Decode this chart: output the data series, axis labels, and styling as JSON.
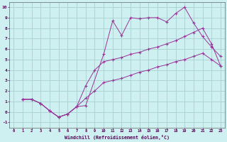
{
  "bg_color": "#cef0f0",
  "grid_color": "#a8d0d0",
  "line_color": "#993399",
  "xlim": [
    -0.5,
    23.5
  ],
  "ylim": [
    -1.5,
    10.5
  ],
  "xticks": [
    0,
    1,
    2,
    3,
    4,
    5,
    6,
    7,
    8,
    9,
    10,
    11,
    12,
    13,
    14,
    15,
    16,
    17,
    18,
    19,
    20,
    21,
    22,
    23
  ],
  "yticks": [
    -1,
    0,
    1,
    2,
    3,
    4,
    5,
    6,
    7,
    8,
    9,
    10
  ],
  "xlabel": "Windchill (Refroidissement éolien,°C)",
  "line1_x": [
    1,
    2,
    3,
    4,
    5,
    6,
    7,
    8,
    10,
    11,
    12,
    13,
    14,
    15,
    16,
    17,
    18,
    19,
    20,
    21,
    22,
    23
  ],
  "line1_y": [
    1.2,
    1.2,
    0.8,
    0.1,
    -0.5,
    -0.2,
    0.5,
    0.6,
    5.5,
    8.7,
    7.3,
    9.0,
    8.9,
    9.0,
    9.0,
    8.6,
    9.4,
    10.0,
    8.5,
    7.2,
    6.2,
    5.3
  ],
  "line2_x": [
    1,
    2,
    3,
    4,
    5,
    6,
    7,
    8,
    9,
    10,
    11,
    12,
    13,
    14,
    15,
    16,
    17,
    18,
    19,
    20,
    21,
    22,
    23
  ],
  "line2_y": [
    1.2,
    1.2,
    0.8,
    0.1,
    -0.5,
    -0.2,
    0.5,
    2.5,
    4.0,
    4.8,
    5.0,
    5.2,
    5.5,
    5.7,
    6.0,
    6.2,
    6.5,
    6.8,
    7.2,
    7.6,
    8.0,
    6.5,
    4.4
  ],
  "line3_x": [
    1,
    2,
    3,
    4,
    5,
    6,
    7,
    8,
    9,
    10,
    11,
    12,
    13,
    14,
    15,
    16,
    17,
    18,
    19,
    20,
    21,
    22,
    23
  ],
  "line3_y": [
    1.2,
    1.2,
    0.8,
    0.1,
    -0.5,
    -0.2,
    0.5,
    1.3,
    2.0,
    2.8,
    3.0,
    3.2,
    3.5,
    3.8,
    4.0,
    4.3,
    4.5,
    4.8,
    5.0,
    5.3,
    5.6,
    5.0,
    4.4
  ]
}
